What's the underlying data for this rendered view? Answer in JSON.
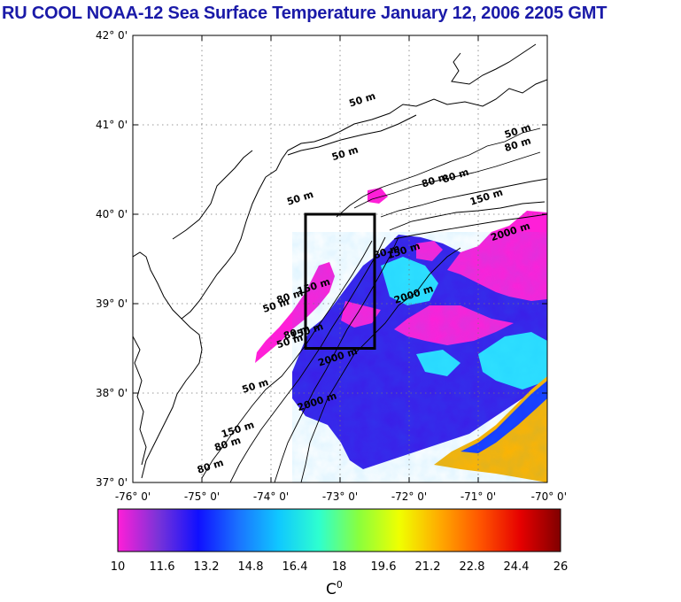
{
  "title": "RU COOL  NOAA-12 Sea Surface Temperature January 12, 2006 2205 GMT",
  "map": {
    "lat_labels": [
      "42° 0'",
      "41° 0'",
      "40° 0'",
      "39° 0'",
      "38° 0'",
      "37° 0'"
    ],
    "lon_labels": [
      "-76° 0'",
      "-75° 0'",
      "-74° 0'",
      "-73° 0'",
      "-72° 0'",
      "-71° 0'",
      "-70° 0'"
    ],
    "lat_range": [
      37,
      42
    ],
    "lon_range": [
      -76,
      -70
    ],
    "grid": "dotted",
    "land_color": "#ffffff",
    "study_box": {
      "lon": [
        -73.5,
        -72.5
      ],
      "lat": [
        38.5,
        40.0
      ]
    },
    "contour_labels": [
      {
        "text": "50 m",
        "lon": -72.85,
        "lat": 41.2
      },
      {
        "text": "50 m",
        "lon": -73.1,
        "lat": 40.6
      },
      {
        "text": "50 m",
        "lon": -73.75,
        "lat": 40.1
      },
      {
        "text": "50 m",
        "lon": -70.6,
        "lat": 40.85
      },
      {
        "text": "80 m",
        "lon": -70.6,
        "lat": 40.7
      },
      {
        "text": "80 m",
        "lon": -71.5,
        "lat": 40.35
      },
      {
        "text": "80 m",
        "lon": -71.8,
        "lat": 40.3
      },
      {
        "text": "150 m",
        "lon": -71.1,
        "lat": 40.1
      },
      {
        "text": "2000 m",
        "lon": -70.8,
        "lat": 39.7
      },
      {
        "text": "80 m",
        "lon": -72.5,
        "lat": 39.5
      },
      {
        "text": "150 m",
        "lon": -72.3,
        "lat": 39.5
      },
      {
        "text": "2000 m",
        "lon": -72.2,
        "lat": 39.0
      },
      {
        "text": "50 m",
        "lon": -74.1,
        "lat": 38.9
      },
      {
        "text": "80 m",
        "lon": -73.9,
        "lat": 39.0
      },
      {
        "text": "150 m",
        "lon": -73.6,
        "lat": 39.1
      },
      {
        "text": "50 m",
        "lon": -73.9,
        "lat": 38.5
      },
      {
        "text": "80 m",
        "lon": -73.8,
        "lat": 38.6
      },
      {
        "text": "150 m",
        "lon": -73.7,
        "lat": 38.6
      },
      {
        "text": "2000 m",
        "lon": -73.3,
        "lat": 38.3
      },
      {
        "text": "50 m",
        "lon": -74.4,
        "lat": 38.0
      },
      {
        "text": "2000 m",
        "lon": -73.6,
        "lat": 37.8
      },
      {
        "text": "150 m",
        "lon": -74.7,
        "lat": 37.5
      },
      {
        "text": "80 m",
        "lon": -74.8,
        "lat": 37.35
      },
      {
        "text": "80 m",
        "lon": -75.05,
        "lat": 37.1
      }
    ]
  },
  "colorbar": {
    "ticks": [
      "10",
      "11.6",
      "13.2",
      "14.8",
      "16.4",
      "18",
      "19.6",
      "21.2",
      "22.8",
      "24.4",
      "26"
    ],
    "range": [
      10,
      26
    ],
    "unit": "C",
    "unit_superscript": "0",
    "colors": [
      "#ff1ed8",
      "#7a33d8",
      "#1010ff",
      "#1a73ff",
      "#10c8ff",
      "#2effcf",
      "#8bff3c",
      "#f0ff00",
      "#ffaa00",
      "#ff5500",
      "#e60000",
      "#800000"
    ]
  },
  "sst_colors": {
    "cold_shelf": "#ff1fd8",
    "slope": "#3b1ee8",
    "gulf_stream_edge": "#1a3aff",
    "warm_eddy": "#2fe0ff",
    "gulf_stream_core": "#ffb400"
  }
}
